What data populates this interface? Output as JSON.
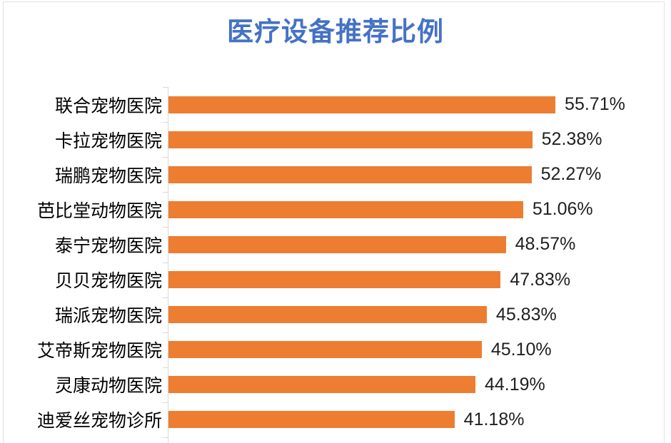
{
  "title": "医疗设备推荐比例",
  "colors": {
    "title": "#4472C4",
    "bar": "#ED7D31",
    "axis": "#D9D9D9",
    "category_text": "#000000",
    "value_text": "#1f1f1f"
  },
  "chart_data": {
    "type": "bar",
    "orientation": "horizontal",
    "title": "医疗设备推荐比例",
    "xlabel": "",
    "ylabel": "",
    "grid": false,
    "legend": null,
    "xlim": [
      0,
      60
    ],
    "value_label_position": "end",
    "categories": [
      "联合宠物医院",
      "卡拉宠物医院",
      "瑞鹏宠物医院",
      "芭比堂动物医院",
      "泰宁宠物医院",
      "贝贝宠物医院",
      "瑞派宠物医院",
      "艾帝斯宠物医院",
      "灵康动物医院",
      "迪爱丝宠物诊所"
    ],
    "values": [
      55.71,
      52.38,
      52.27,
      51.06,
      48.57,
      47.83,
      45.83,
      45.1,
      44.19,
      41.18
    ],
    "value_labels": [
      "55.71%",
      "52.38%",
      "52.27%",
      "51.06%",
      "48.57%",
      "47.83%",
      "45.83%",
      "45.10%",
      "44.19%",
      "41.18%"
    ]
  }
}
